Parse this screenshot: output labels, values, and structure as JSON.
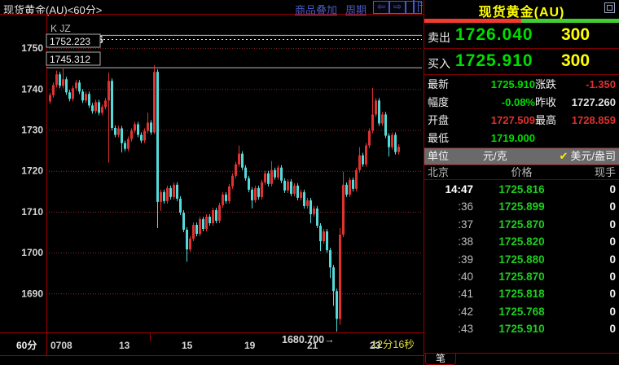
{
  "colors": {
    "up_candle": "#e13232",
    "down_candle": "#55dada",
    "grid_red": "#8a2a2a",
    "border_red": "#990000",
    "green_text": "#00dd00",
    "red_text": "#e03030",
    "yellow": "#ffff00",
    "link_blue": "#4a5abf",
    "bar_red": "#f03b30",
    "bar_green": "#44cc33"
  },
  "topbar": {
    "title": "现货黄金(AU)<60分>",
    "links": [
      "商品叠加",
      "周期"
    ],
    "icons": [
      {
        "name": "prev-arrow-icon",
        "glyph": "⇦"
      },
      {
        "name": "next-arrow-icon",
        "glyph": "⇨"
      },
      {
        "name": "split-window-icon",
        "glyph": ""
      }
    ]
  },
  "chart_data": {
    "type": "candlestick",
    "indicator_label": "K JZ",
    "period_label": "60分",
    "countdown": "12分16秒",
    "y_ticks": [
      1750,
      1740,
      1730,
      1720,
      1710,
      1700,
      1690
    ],
    "x_labels": [
      "0708",
      "13",
      "15",
      "19",
      "21",
      "23"
    ],
    "ylim": [
      1680.5,
      1756.2
    ],
    "high_marker": {
      "arrow": "↑",
      "value": "1753.246"
    },
    "level_boxes": [
      "1752.223",
      "1745.312"
    ],
    "levels": [
      {
        "value": 1753.246,
        "style": "solid"
      },
      {
        "value": 1752.223,
        "style": "dotted"
      },
      {
        "value": 1745.312,
        "style": "solid"
      }
    ],
    "low_annotation": {
      "value": "1680.700",
      "arrow": "→"
    },
    "open_first": 1737.0,
    "default_wick": 0.6,
    "closes": [
      1738.5,
      1741.0,
      1743.6,
      1740.8,
      1742.4,
      1739.2,
      1737.6,
      1740.2,
      1741.6,
      1739.4,
      1737.2,
      1738.8,
      1736.0,
      1734.6,
      1736.8,
      1734.2,
      1735.6,
      1737.2,
      1742.0,
      1730.5,
      1728.8,
      1730.4,
      1726.8,
      1725.4,
      1727.8,
      1729.8,
      1731.4,
      1728.8,
      1727.4,
      1729.8,
      1731.8,
      1729.4,
      1744.2,
      1712.4,
      1714.8,
      1712.6,
      1715.8,
      1713.6,
      1716.6,
      1713.2,
      1709.8,
      1705.6,
      1700.8,
      1703.4,
      1706.8,
      1704.6,
      1708.2,
      1705.8,
      1708.8,
      1707.2,
      1710.4,
      1707.8,
      1711.6,
      1714.2,
      1712.6,
      1716.2,
      1718.8,
      1721.6,
      1724.2,
      1720.8,
      1718.2,
      1715.4,
      1712.8,
      1715.8,
      1713.6,
      1717.2,
      1719.4,
      1716.8,
      1720.2,
      1718.4,
      1720.8,
      1717.6,
      1715.2,
      1717.4,
      1714.4,
      1716.4,
      1713.4,
      1714.8,
      1711.4,
      1712.8,
      1709.4,
      1710.8,
      1706.6,
      1702.8,
      1705.2,
      1700.6,
      1696.4,
      1690.6,
      1683.8,
      1704.4,
      1716.6,
      1714.2,
      1717.8,
      1715.6,
      1720.2,
      1723.8,
      1721.6,
      1726.2,
      1729.8,
      1733.8,
      1737.2,
      1731.6,
      1733.8,
      1728.6,
      1725.8,
      1728.8,
      1724.6,
      1725.9
    ],
    "wick_overrides": {
      "2": {
        "h": 1744.5
      },
      "4": {
        "h": 1745.0
      },
      "18": {
        "h": 1744.0,
        "l": 1722.0
      },
      "22": {
        "l": 1724.5
      },
      "30": {
        "h": 1734.2
      },
      "32": {
        "h": 1745.8,
        "l": 1729.0
      },
      "33": {
        "h": 1744.8,
        "l": 1706.0
      },
      "34": {
        "l": 1710.2
      },
      "42": {
        "l": 1697.8
      },
      "58": {
        "h": 1726.2
      },
      "62": {
        "l": 1710.8
      },
      "68": {
        "h": 1722.4
      },
      "80": {
        "l": 1707.2
      },
      "83": {
        "l": 1700.4
      },
      "86": {
        "l": 1693.8
      },
      "87": {
        "l": 1687.0
      },
      "88": {
        "l": 1680.7
      },
      "89": {
        "h": 1706.0,
        "l": 1682.4
      },
      "90": {
        "h": 1719.8
      },
      "95": {
        "h": 1725.8
      },
      "99": {
        "h": 1740.3
      },
      "104": {
        "l": 1723.5
      }
    }
  },
  "panel": {
    "title": "现货黄金(AU)",
    "strength_bar": {
      "red_pct": 49.6,
      "green_pct": 50.4
    },
    "sell": {
      "label": "卖出",
      "price": "1726.040",
      "size": "300"
    },
    "buy": {
      "label": "买入",
      "price": "1725.910",
      "size": "300"
    },
    "stats": [
      {
        "label": "最新",
        "value": "1725.910",
        "color": "green",
        "label2": "涨跌",
        "value2": "-1.350",
        "color2": "red"
      },
      {
        "label": "幅度",
        "value": "-0.08%",
        "color": "green",
        "label2": "昨收",
        "value2": "1727.260",
        "color2": "white"
      },
      {
        "label": "开盘",
        "value": "1727.509",
        "color": "red",
        "label2": "最高",
        "value2": "1728.859",
        "color2": "red"
      },
      {
        "label": "最低",
        "value": "1719.000",
        "color": "green",
        "label2": "",
        "value2": "",
        "color2": "white"
      }
    ],
    "unit_row": {
      "label": "单位",
      "check_glyph": "✔",
      "options": [
        {
          "label": "元/克",
          "checked": false
        },
        {
          "label": "美元/盎司",
          "checked": true
        }
      ]
    },
    "table": {
      "headers": [
        "北京",
        "价格",
        "现手"
      ],
      "rows": [
        [
          "14:47",
          "1725.816",
          "0"
        ],
        [
          ":36",
          "1725.899",
          "0"
        ],
        [
          ":37",
          "1725.870",
          "0"
        ],
        [
          ":38",
          "1725.820",
          "0"
        ],
        [
          ":39",
          "1725.880",
          "0"
        ],
        [
          ":40",
          "1725.870",
          "0"
        ],
        [
          ":41",
          "1725.818",
          "0"
        ],
        [
          ":42",
          "1725.768",
          "0"
        ],
        [
          ":43",
          "1725.910",
          "0"
        ]
      ]
    },
    "tab": "笔"
  }
}
